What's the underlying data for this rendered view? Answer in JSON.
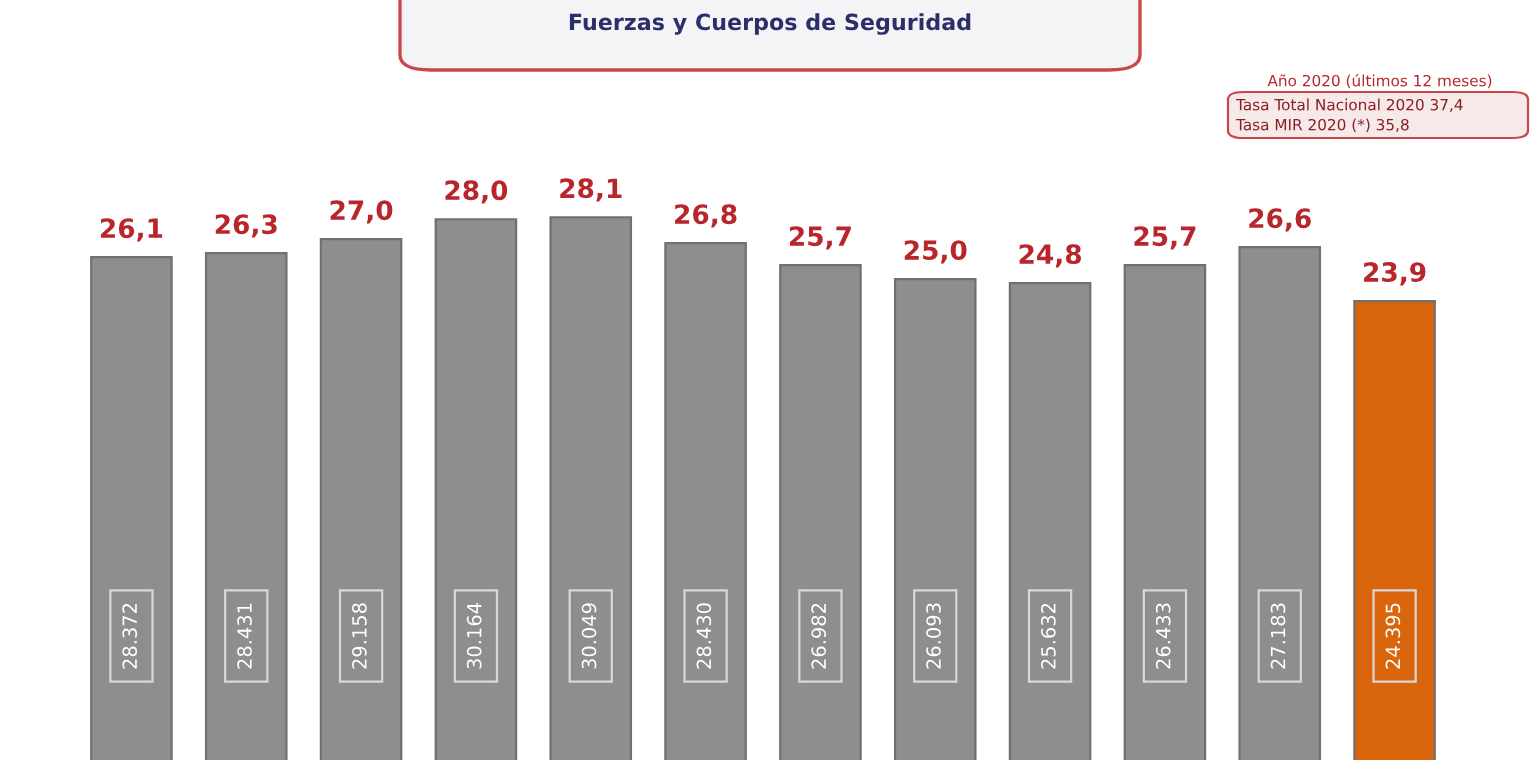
{
  "chart_data": {
    "type": "bar",
    "title": "Fuerzas y Cuerpos de Seguridad",
    "subtitle": "Año 2020 (últimos 12 meses)",
    "categories": [
      null,
      null,
      null,
      null,
      null,
      null,
      null,
      null,
      null,
      null,
      null,
      null
    ],
    "values": [
      26.1,
      26.3,
      27.0,
      28.0,
      28.1,
      26.8,
      25.7,
      25.0,
      24.8,
      25.7,
      26.6,
      23.9
    ],
    "colors": [
      "#8e8e8e",
      "#8e8e8e",
      "#8e8e8e",
      "#8e8e8e",
      "#8e8e8e",
      "#8e8e8e",
      "#8e8e8e",
      "#8e8e8e",
      "#8e8e8e",
      "#8e8e8e",
      "#8e8e8e",
      "#d9650c"
    ],
    "value_labels": [
      "26,1",
      "26,3",
      "27,0",
      "28,0",
      "28,1",
      "26,8",
      "25,7",
      "25,0",
      "24,8",
      "25,7",
      "26,6",
      "23,9"
    ],
    "annotations": [
      "Tasa Total Nacional 2020 37,4",
      "Tasa MIR 2020 (*) 35,8",
      "28.372",
      "28.431",
      "29.158",
      "30.164",
      "30.049",
      "28.430",
      "26.982",
      "26.093",
      "25.632",
      "26.433",
      "27.183",
      "24.395"
    ],
    "grid": false,
    "legend": false,
    "tick_labels": false
  }
}
